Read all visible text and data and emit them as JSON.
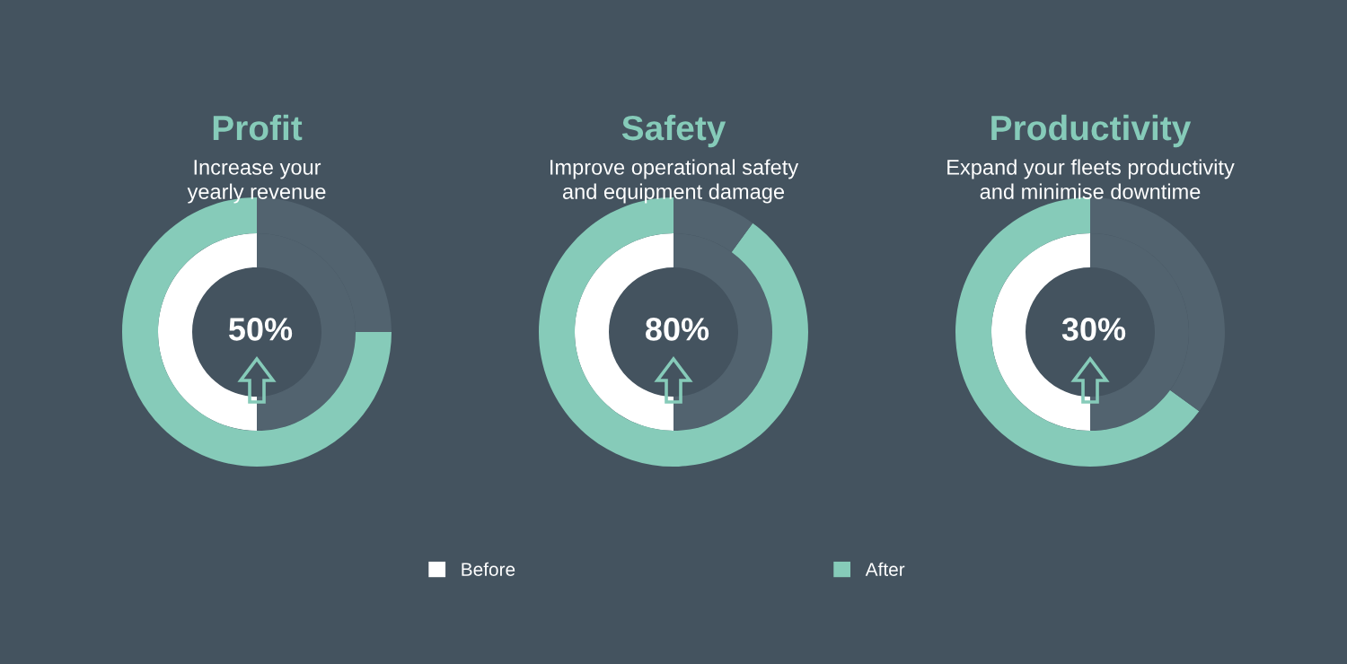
{
  "chart_data": [
    {
      "type": "donut",
      "title": "Profit",
      "subtitle": "Increase your\nyearly revenue",
      "annotations": [
        "50%"
      ],
      "legend": "bottom",
      "series": [
        {
          "name": "Before",
          "colors": [
            "#ffffff",
            "#52636f"
          ],
          "values": [
            50,
            50
          ]
        },
        {
          "name": "After",
          "colors": [
            "#86cbb9",
            "#52636f"
          ],
          "values": [
            75,
            25
          ]
        }
      ]
    },
    {
      "type": "donut",
      "title": "Safety",
      "subtitle": "Improve operational safety\nand equipment damage",
      "annotations": [
        "80%"
      ],
      "series": [
        {
          "name": "Before",
          "colors": [
            "#ffffff",
            "#52636f"
          ],
          "values": [
            50,
            50
          ]
        },
        {
          "name": "After",
          "colors": [
            "#86cbb9",
            "#52636f"
          ],
          "values": [
            90,
            10
          ]
        }
      ]
    },
    {
      "type": "donut",
      "title": "Productivity",
      "subtitle": "Expand your fleets productivity\nand minimise downtime",
      "annotations": [
        "30%"
      ],
      "series": [
        {
          "name": "Before",
          "colors": [
            "#ffffff",
            "#52636f"
          ],
          "values": [
            50,
            50
          ]
        },
        {
          "name": "After",
          "colors": [
            "#86cbb9",
            "#52636f"
          ],
          "values": [
            65,
            35
          ]
        }
      ]
    }
  ]
}
